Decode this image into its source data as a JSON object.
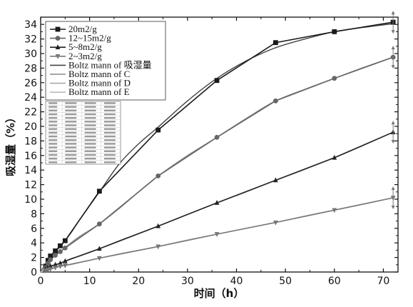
{
  "chart_data": {
    "type": "line",
    "xlabel": "时间（h）",
    "ylabel": "吸湿量（%）",
    "xlim": [
      0,
      73
    ],
    "ylim": [
      0,
      35
    ],
    "x_ticks": [
      0,
      10,
      20,
      30,
      40,
      50,
      60,
      70
    ],
    "y_ticks": [
      0,
      2,
      4,
      6,
      8,
      10,
      12,
      14,
      16,
      18,
      20,
      22,
      24,
      26,
      28,
      30,
      32,
      34
    ],
    "grid": false,
    "legend_position": "top-left",
    "series": [
      {
        "name": "20m2/g",
        "marker": "square",
        "color": "#1a1a1a",
        "x": [
          1,
          1.5,
          2,
          3,
          4,
          5,
          12,
          24,
          36,
          48,
          60,
          72
        ],
        "y": [
          0.8,
          1.6,
          2.2,
          2.9,
          3.6,
          4.3,
          11.1,
          19.5,
          26.3,
          31.5,
          33.0,
          34.3
        ]
      },
      {
        "name": "12~15m2/g",
        "marker": "circle",
        "color": "#666666",
        "x": [
          1,
          1.5,
          2,
          3,
          4,
          5,
          12,
          24,
          36,
          48,
          60,
          72
        ],
        "y": [
          0.6,
          1.2,
          1.7,
          2.3,
          2.8,
          3.3,
          6.6,
          13.2,
          18.5,
          23.5,
          26.6,
          29.5
        ]
      },
      {
        "name": "5~8m2/g",
        "marker": "triangle-up",
        "color": "#222222",
        "x": [
          1,
          1.5,
          2,
          3,
          4,
          5,
          12,
          24,
          36,
          48,
          60,
          72
        ],
        "y": [
          0.4,
          0.6,
          0.8,
          1.0,
          1.2,
          1.5,
          3.2,
          6.3,
          9.5,
          12.6,
          15.7,
          19.2
        ]
      },
      {
        "name": "2~3m2/g",
        "marker": "triangle-down",
        "color": "#777777",
        "x": [
          1,
          1.5,
          2,
          3,
          4,
          5,
          12,
          24,
          36,
          48,
          60,
          72
        ],
        "y": [
          0.2,
          0.3,
          0.4,
          0.6,
          0.8,
          0.9,
          1.9,
          3.5,
          5.2,
          6.8,
          8.5,
          10.2
        ]
      }
    ],
    "fit_series": [
      {
        "name": "Boltz mann of 吸湿量",
        "color": "#444444",
        "x": [
          0,
          2,
          4,
          6,
          8,
          12,
          16,
          20,
          24,
          30,
          36,
          42,
          48,
          54,
          60,
          66,
          72
        ],
        "y": [
          0,
          2.2,
          3.5,
          5.2,
          7.2,
          11.0,
          14.8,
          17.6,
          19.9,
          23.5,
          26.6,
          29.0,
          30.8,
          32.0,
          33.0,
          33.6,
          34.1
        ]
      },
      {
        "name": "Boltz mann of C",
        "color": "#888888",
        "x": [
          0,
          2,
          4,
          6,
          8,
          12,
          16,
          20,
          24,
          30,
          36,
          42,
          48,
          54,
          60,
          66,
          72
        ],
        "y": [
          0,
          1.7,
          2.8,
          3.9,
          4.9,
          6.6,
          8.7,
          11.0,
          13.2,
          16.0,
          18.5,
          21.1,
          23.5,
          25.1,
          26.6,
          28.1,
          29.5
        ]
      },
      {
        "name": "Boltz mann of D",
        "color": "#aaaaaa",
        "x": [
          0,
          2,
          4,
          6,
          8,
          12,
          16,
          20,
          24,
          30,
          36,
          42,
          48,
          54,
          60,
          66,
          72
        ],
        "y": [
          0,
          0.8,
          1.2,
          1.8,
          2.2,
          3.2,
          4.3,
          5.3,
          6.3,
          7.9,
          9.5,
          11.0,
          12.6,
          14.1,
          15.7,
          17.4,
          19.2
        ]
      },
      {
        "name": "Boltz mann of E",
        "color": "#bbbbbb",
        "x": [
          0,
          2,
          4,
          6,
          8,
          12,
          16,
          20,
          24,
          30,
          36,
          42,
          48,
          54,
          60,
          66,
          72
        ],
        "y": [
          0,
          0.4,
          0.8,
          1.0,
          1.3,
          1.9,
          2.5,
          3.0,
          3.5,
          4.4,
          5.2,
          6.0,
          6.8,
          7.7,
          8.5,
          9.3,
          10.2
        ]
      }
    ]
  }
}
